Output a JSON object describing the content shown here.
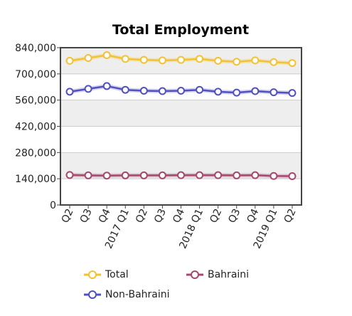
{
  "chart_data": {
    "type": "line",
    "title": "Total Employment",
    "xlabel": "",
    "ylabel": "",
    "categories": [
      "Q2",
      "Q3",
      "Q4",
      "2017 Q1",
      "Q2",
      "Q3",
      "Q4",
      "2018 Q1",
      "Q2",
      "Q3",
      "Q4",
      "2019 Q1",
      "Q2"
    ],
    "yticks": [
      "0",
      "140,000",
      "280,000",
      "420,000",
      "560,000",
      "700,000",
      "840,000"
    ],
    "ylim": [
      0,
      840000
    ],
    "grid": true,
    "legend_position": "bottom",
    "series": [
      {
        "name": "Total",
        "color": "#f2c233",
        "values": [
          770000,
          785000,
          800000,
          780000,
          775000,
          772000,
          775000,
          780000,
          770000,
          765000,
          772000,
          763000,
          758000
        ]
      },
      {
        "name": "Non-Bahraini",
        "color": "#5050c0",
        "values": [
          605000,
          620000,
          635000,
          615000,
          610000,
          608000,
          610000,
          615000,
          605000,
          600000,
          608000,
          602000,
          598000
        ]
      },
      {
        "name": "Bahraini",
        "color": "#a8476e",
        "values": [
          160000,
          158000,
          157000,
          158000,
          158000,
          158000,
          159000,
          159000,
          159000,
          158000,
          159000,
          155000,
          154000
        ]
      }
    ]
  }
}
